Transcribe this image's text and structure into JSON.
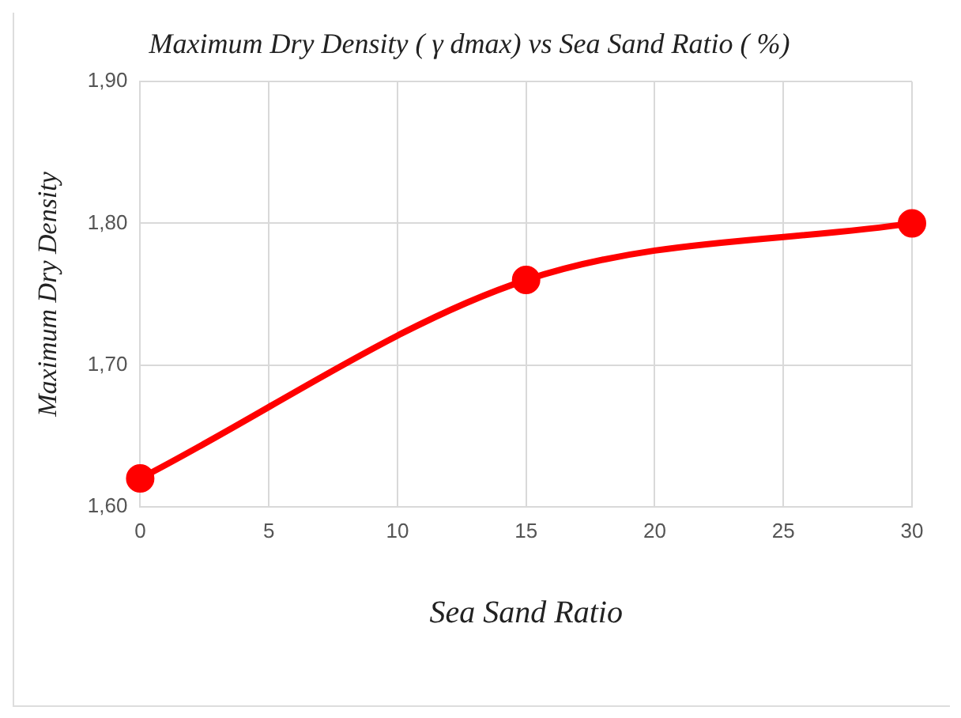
{
  "chart_data": {
    "type": "line",
    "title": "Maximum Dry Density ( γ dmax) vs Sea Sand Ratio ( %)",
    "xlabel": "Sea Sand Ratio",
    "ylabel": "Maximum Dry Density",
    "x": [
      0,
      15,
      30
    ],
    "series": [
      {
        "color": "#ff0000",
        "values": [
          1.62,
          1.76,
          1.8
        ]
      }
    ],
    "xlim": [
      0,
      30
    ],
    "xticks": [
      0,
      5,
      10,
      15,
      20,
      25,
      30
    ],
    "ylim": [
      1.6,
      1.9
    ],
    "yticks": [
      {
        "value": 1.6,
        "label": "1,60"
      },
      {
        "value": 1.7,
        "label": "1,70"
      },
      {
        "value": 1.8,
        "label": "1,80"
      },
      {
        "value": 1.9,
        "label": "1,90"
      }
    ],
    "grid": true,
    "legend": false,
    "marker": "circle",
    "line_style": "solid"
  }
}
